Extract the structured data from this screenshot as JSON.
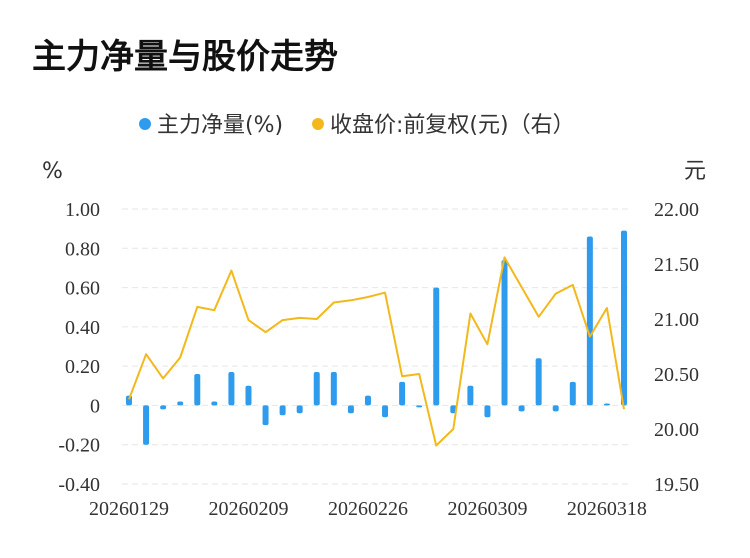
{
  "page": {
    "title": "主力净量与股价走势"
  },
  "legend": [
    {
      "label": "主力净量(%)",
      "color": "#2f9bed"
    },
    {
      "label": "收盘价:前复权(元)（右）",
      "color": "#f2b81c"
    }
  ],
  "chart_data": {
    "type": "bar+line",
    "title": "主力净量与股价走势",
    "left_unit": "%",
    "right_unit": "元",
    "y_left": {
      "min": -0.4,
      "max": 1.0,
      "ticks": [
        -0.4,
        -0.2,
        0,
        0.2,
        0.4,
        0.6,
        0.8,
        1.0
      ],
      "tick_labels": [
        "-0.40",
        "-0.20",
        "0",
        "0.20",
        "0.40",
        "0.60",
        "0.80",
        "1.00"
      ]
    },
    "y_right": {
      "min": 19.5,
      "max": 22.0,
      "ticks": [
        19.5,
        20.0,
        20.5,
        21.0,
        21.5,
        22.0
      ],
      "tick_labels": [
        "19.50",
        "20.00",
        "20.50",
        "21.00",
        "21.50",
        "22.00"
      ]
    },
    "x_tick_labels": [
      {
        "index": 0,
        "label": "20260129"
      },
      {
        "index": 7,
        "label": "20260209"
      },
      {
        "index": 14,
        "label": "20260226"
      },
      {
        "index": 21,
        "label": "20260309"
      },
      {
        "index": 28,
        "label": "20260318"
      }
    ],
    "grid": true,
    "legend_position": "top",
    "series": [
      {
        "name": "主力净量(%)",
        "type": "bar",
        "color": "#2f9bed",
        "values": [
          0.05,
          -0.2,
          -0.02,
          0.02,
          0.16,
          0.02,
          0.17,
          0.1,
          -0.1,
          -0.05,
          -0.04,
          0.17,
          0.17,
          -0.04,
          0.05,
          -0.06,
          0.12,
          -0.01,
          0.6,
          -0.04,
          0.1,
          -0.06,
          0.74,
          -0.03,
          0.24,
          -0.03,
          0.12,
          0.86,
          0.01,
          0.89
        ]
      },
      {
        "name": "收盘价:前复权(元)（右）",
        "type": "line",
        "color": "#f2b81c",
        "values": [
          20.27,
          20.68,
          20.46,
          20.65,
          21.11,
          21.08,
          21.44,
          20.99,
          20.88,
          20.99,
          21.01,
          21.0,
          21.15,
          21.17,
          21.2,
          21.24,
          20.48,
          20.5,
          19.85,
          20.0,
          21.05,
          20.77,
          21.56,
          21.29,
          21.02,
          21.23,
          21.31,
          20.84,
          21.1,
          20.18
        ]
      }
    ]
  }
}
